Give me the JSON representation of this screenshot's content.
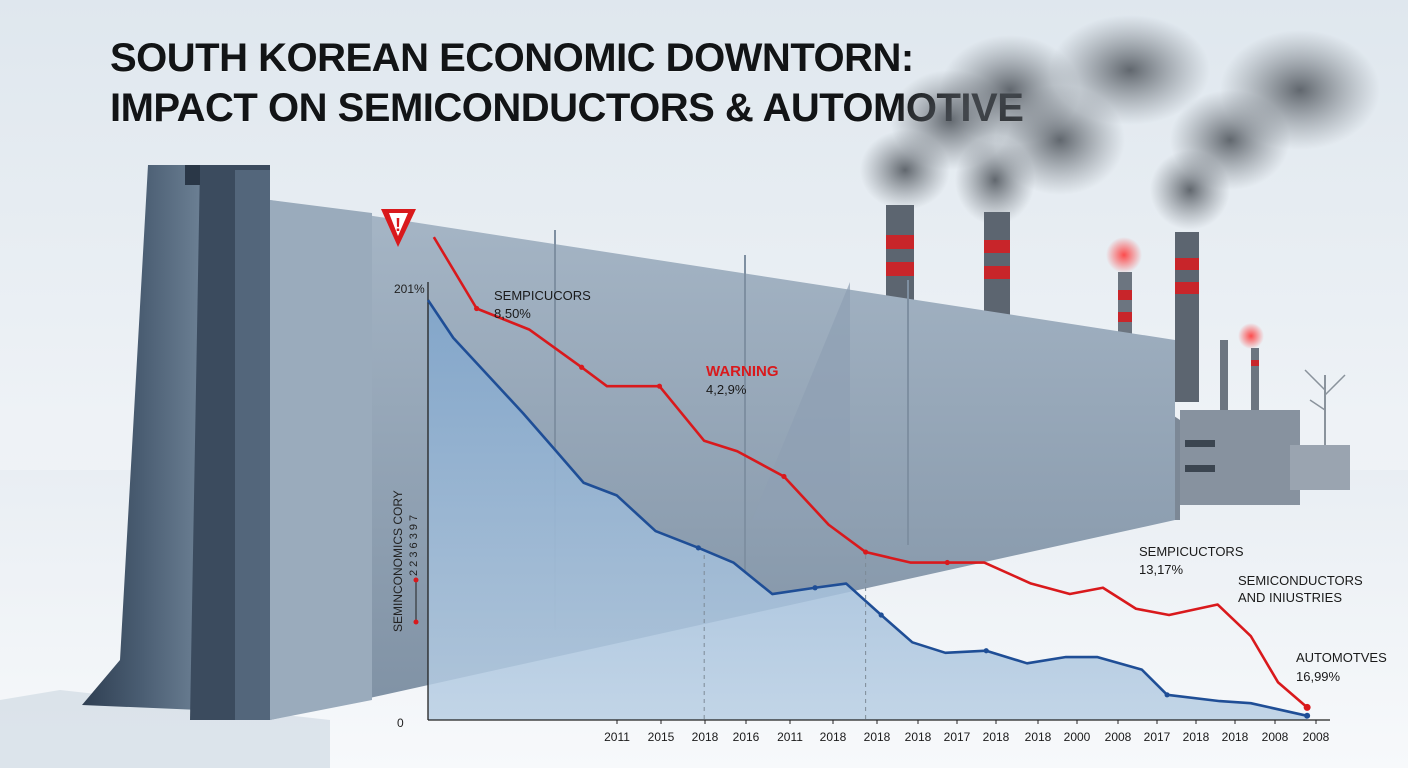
{
  "title_lines": [
    "SOUTH KOREAN ECONOMIC DOWNTORN:",
    "IMPACT ON SEMICONDUCTORS & AUTOMOTIVE"
  ],
  "colors": {
    "red_series": "#d9191c",
    "blue_series": "#1f4e96",
    "area_fill": "#8fb0d2",
    "warning": "#d9191c"
  },
  "chart_data": {
    "type": "line",
    "ylim": [
      0,
      201
    ],
    "y_ticks": [
      {
        "value": 201,
        "label": "201%"
      },
      {
        "value": 0,
        "label": "0"
      }
    ],
    "ylabel": "SEMINCONOMICS CORY",
    "ylabel_sub": "2 2 3 6   3 9 7",
    "categories": [
      "2011",
      "2015",
      "2018",
      "2016",
      "2011",
      "2018",
      "2018",
      "2018",
      "2017",
      "2018",
      "2018",
      "2000",
      "2008",
      "2017",
      "2018",
      "2018",
      "2008",
      "2008"
    ],
    "category_positions": [
      2011,
      2015,
      2018,
      2016,
      2011,
      2018,
      2018,
      2018,
      2017,
      2018,
      2018,
      2000,
      2008,
      2017,
      2018,
      2018,
      2008,
      2008
    ],
    "series": [
      {
        "color": "red",
        "points": [
          [
            0.15,
            230
          ],
          [
            1.25,
            196
          ],
          [
            2.6,
            186
          ],
          [
            3.95,
            168
          ],
          [
            4.6,
            159
          ],
          [
            5.95,
            159
          ],
          [
            7.1,
            133
          ],
          [
            7.95,
            128
          ],
          [
            9.15,
            116
          ],
          [
            10.3,
            93
          ],
          [
            11.25,
            80
          ],
          [
            12.4,
            75
          ],
          [
            13.35,
            75
          ],
          [
            14.3,
            75
          ],
          [
            15.5,
            65
          ],
          [
            16.5,
            60
          ],
          [
            17.35,
            63
          ],
          [
            18.2,
            53
          ],
          [
            19.05,
            50
          ],
          [
            20.3,
            55
          ],
          [
            21.15,
            40
          ],
          [
            21.85,
            18
          ],
          [
            22.6,
            6
          ]
        ],
        "markers": [
          1,
          3,
          5,
          8,
          10,
          12
        ]
      },
      {
        "color": "blue",
        "points": [
          [
            0.0,
            200
          ],
          [
            0.65,
            182
          ],
          [
            1.65,
            162
          ],
          [
            2.45,
            146
          ],
          [
            3.25,
            129
          ],
          [
            4.0,
            113
          ],
          [
            4.85,
            107
          ],
          [
            5.85,
            90
          ],
          [
            6.95,
            82
          ],
          [
            7.85,
            75
          ],
          [
            8.85,
            60
          ],
          [
            9.95,
            63
          ],
          [
            10.75,
            65
          ],
          [
            11.65,
            50
          ],
          [
            12.45,
            37
          ],
          [
            13.3,
            32
          ],
          [
            14.35,
            33
          ],
          [
            15.4,
            27
          ],
          [
            16.4,
            30
          ],
          [
            17.2,
            30
          ],
          [
            18.35,
            24
          ],
          [
            19.0,
            12
          ],
          [
            20.35,
            9
          ],
          [
            21.15,
            8
          ],
          [
            22.6,
            2
          ]
        ],
        "markers": [
          8,
          11,
          13,
          16,
          21
        ]
      }
    ],
    "annotations": [
      {
        "name": "semiconductors",
        "lines": [
          "SEMPICUCORS",
          "8,50%"
        ]
      },
      {
        "name": "warning",
        "lines": [
          "WARNING",
          "4,2,9%"
        ]
      },
      {
        "name": "sempicutors",
        "lines": [
          "SEMPICUCTORS",
          "13,17%"
        ]
      },
      {
        "name": "industries",
        "lines": [
          "SEMICONDUCTORS",
          "AND INIUSTRIES"
        ]
      },
      {
        "name": "automotives",
        "lines": [
          "AUTOMOTVES",
          "16,99%"
        ]
      }
    ],
    "warning_symbol": "!"
  }
}
